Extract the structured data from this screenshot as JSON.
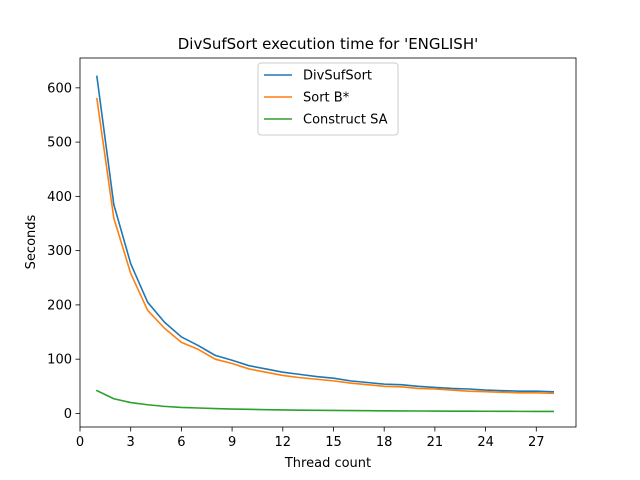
{
  "chart_data": {
    "type": "line",
    "title": "DivSufSort execution time for 'ENGLISH'",
    "xlabel": "Thread count",
    "ylabel": "Seconds",
    "xlim": [
      0,
      29.35
    ],
    "ylim": [
      -25,
      655
    ],
    "xticks": [
      0,
      3,
      6,
      9,
      12,
      15,
      18,
      21,
      24,
      27
    ],
    "yticks": [
      0,
      100,
      200,
      300,
      400,
      500,
      600
    ],
    "grid": false,
    "legend_position": "top-center",
    "x": [
      1,
      2,
      3,
      4,
      5,
      6,
      7,
      8,
      9,
      10,
      11,
      12,
      13,
      14,
      15,
      16,
      17,
      18,
      19,
      20,
      21,
      22,
      23,
      24,
      25,
      26,
      27,
      28
    ],
    "series": [
      {
        "name": "DivSufSort",
        "color": "#1f77b4",
        "values": [
          621,
          385,
          276,
          205,
          168,
          141,
          125,
          107,
          98,
          88,
          82,
          76,
          72,
          68,
          65,
          60,
          57,
          54,
          53,
          50,
          48,
          46,
          45,
          43,
          42,
          41,
          41,
          40
        ]
      },
      {
        "name": "Sort B*",
        "color": "#ff7f0e",
        "values": [
          580,
          360,
          258,
          190,
          157,
          131,
          118,
          100,
          92,
          82,
          76,
          70,
          66,
          63,
          60,
          56,
          53,
          50,
          49,
          46,
          45,
          43,
          41,
          40,
          39,
          38,
          38,
          37
        ]
      },
      {
        "name": "Construct SA",
        "color": "#2ca02c",
        "values": [
          42,
          27,
          20,
          16,
          13,
          11,
          10,
          9,
          8,
          7.5,
          7,
          6.5,
          6,
          5.8,
          5.5,
          5.2,
          5,
          4.8,
          4.6,
          4.5,
          4.4,
          4.2,
          4.1,
          4,
          3.9,
          3.8,
          3.7,
          3.6
        ]
      }
    ]
  }
}
